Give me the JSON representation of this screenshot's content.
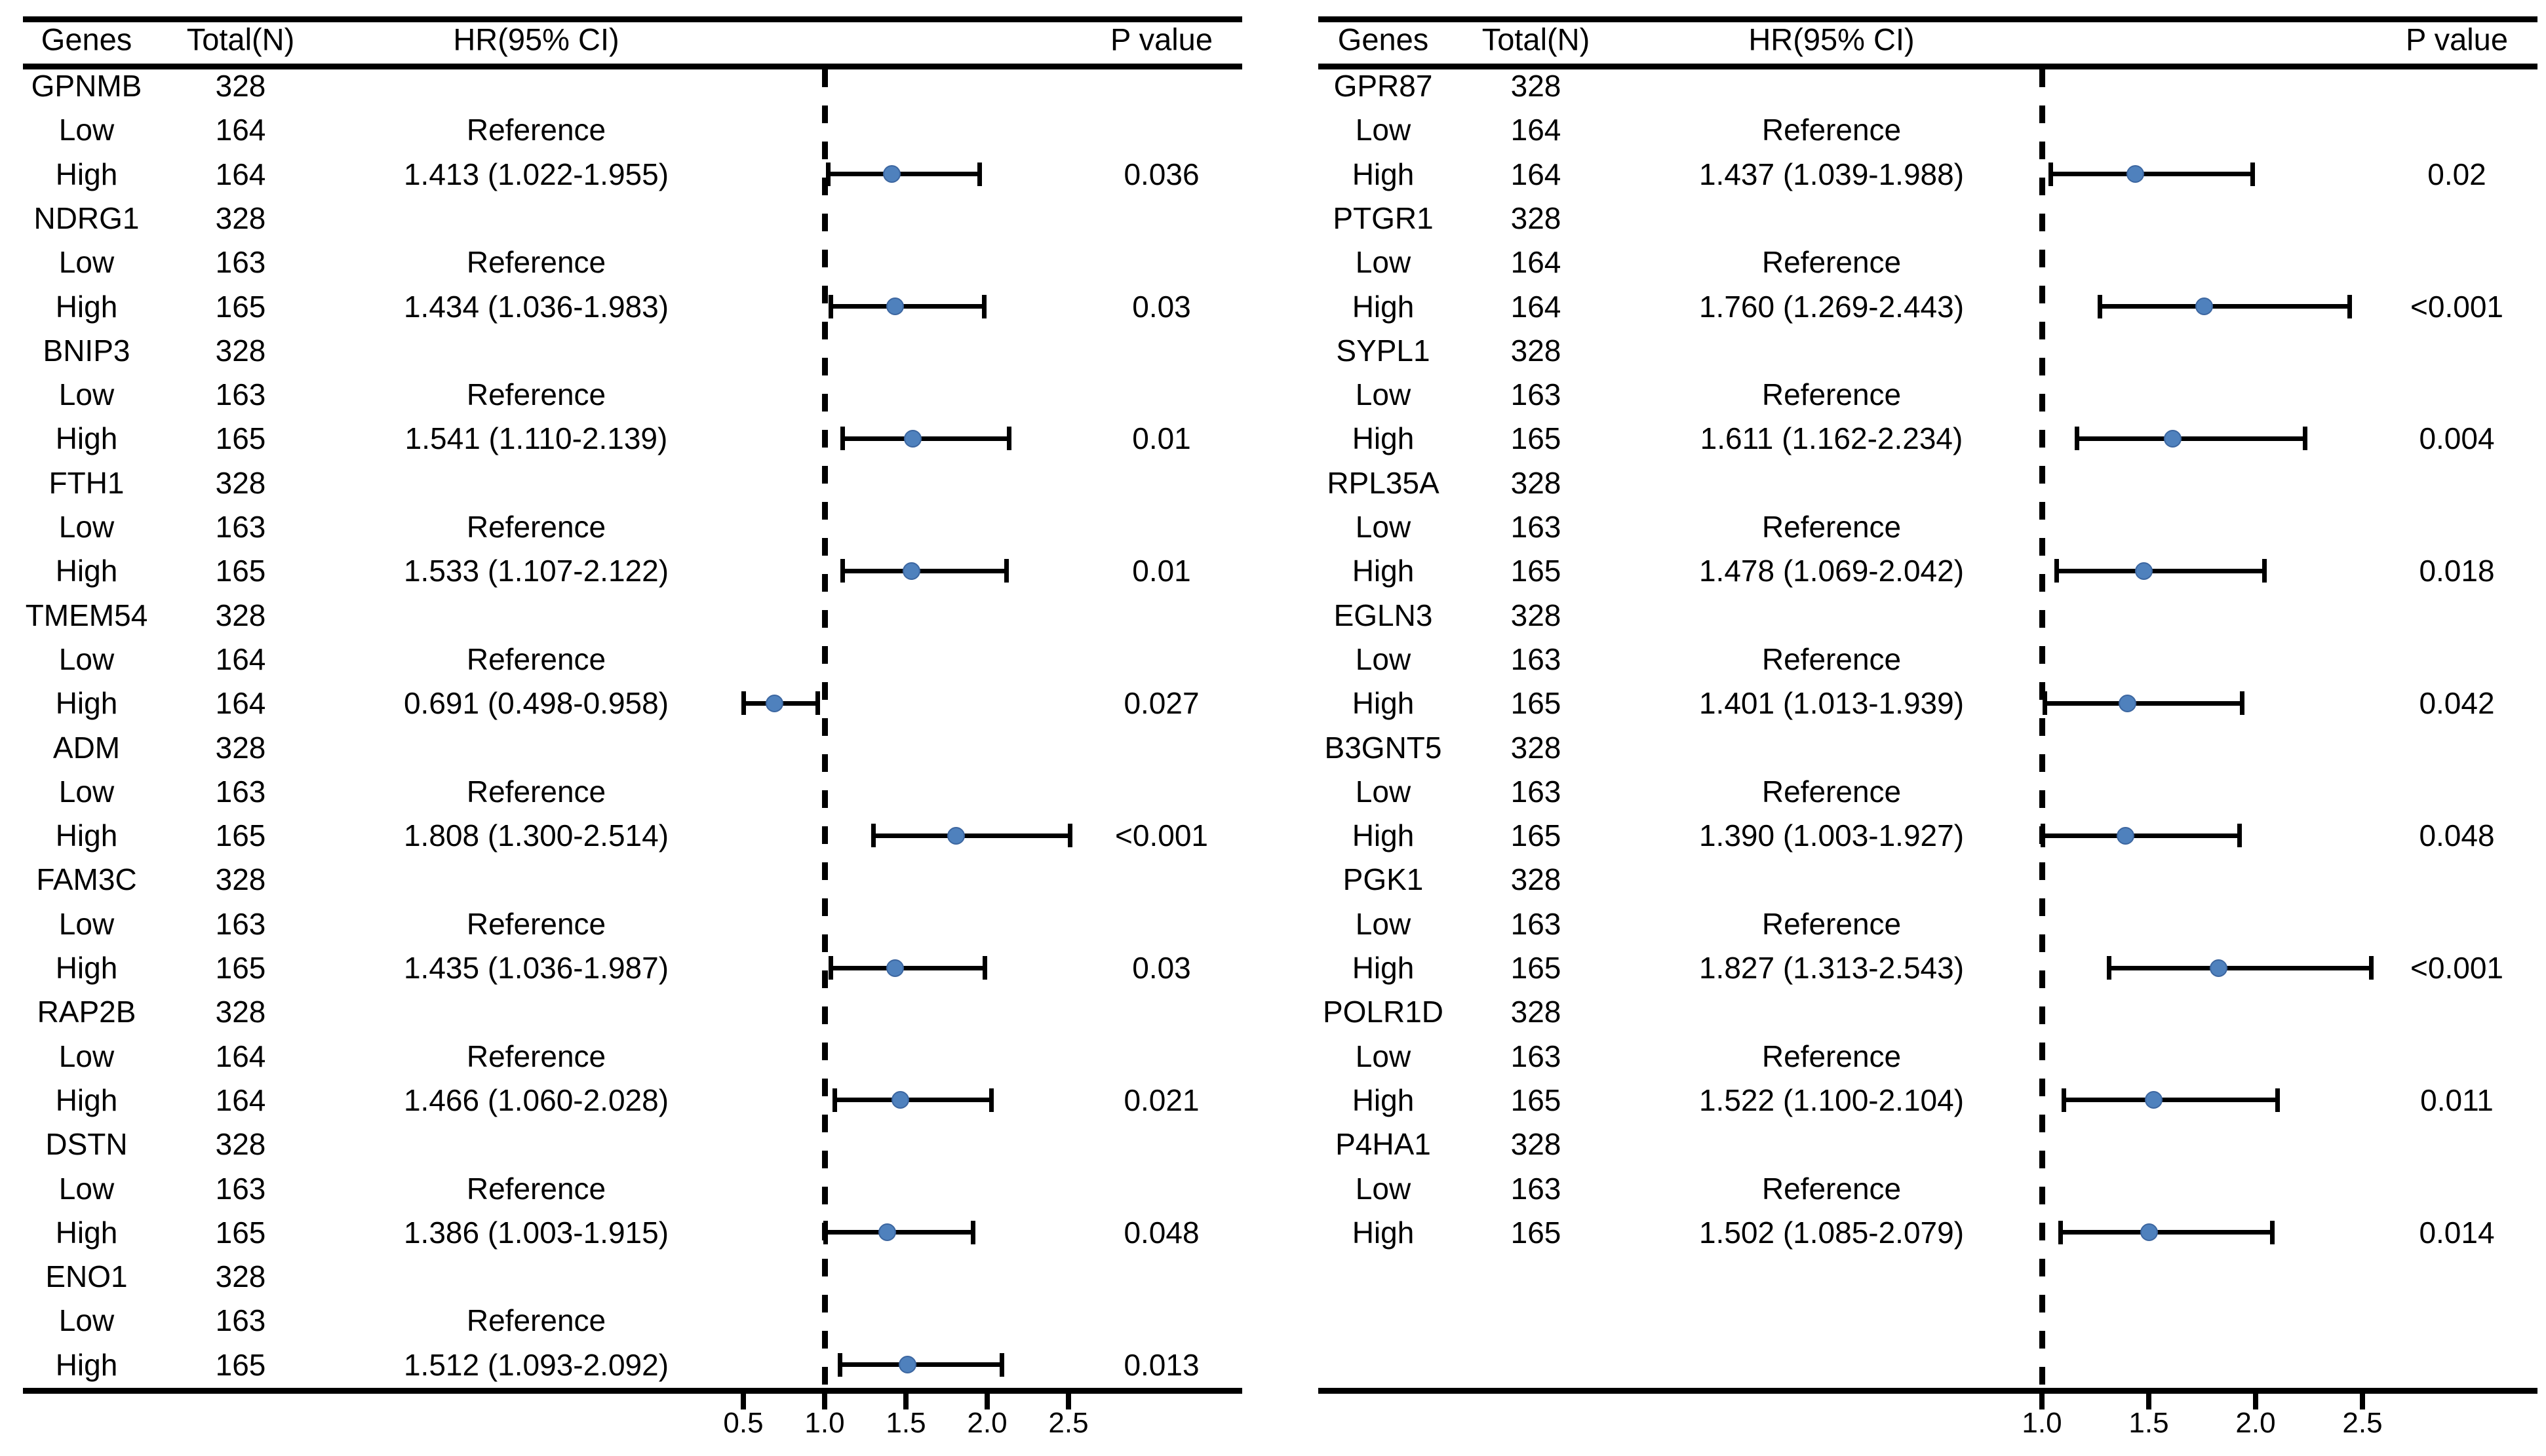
{
  "style": {
    "dot_fill": "#4f81bd",
    "dot_border": "#3c66a0",
    "line_color": "#000000",
    "background": "#ffffff"
  },
  "chart_data": [
    {
      "type": "forest",
      "panel": "left",
      "columns": {
        "genes": "Genes",
        "total": "Total(N)",
        "hr": "HR(95% CI)",
        "p": "P value"
      },
      "axis": {
        "ref_line": 1.0,
        "xmin": 0.3,
        "xmax": 2.9,
        "ticks": [
          "0.5",
          "1.0",
          "1.5",
          "2.0",
          "2.5"
        ],
        "tick_values": [
          0.5,
          1.0,
          1.5,
          2.0,
          2.5
        ]
      },
      "rows": [
        {
          "gene": "GPNMB",
          "total": "328"
        },
        {
          "gene": "Low",
          "total": "164",
          "hr_text": "Reference"
        },
        {
          "gene": "High",
          "total": "164",
          "hr_text": "1.413 (1.022-1.955)",
          "hr": 1.413,
          "lo": 1.022,
          "hi": 1.955,
          "p": "0.036"
        },
        {
          "gene": "NDRG1",
          "total": "328"
        },
        {
          "gene": "Low",
          "total": "163",
          "hr_text": "Reference"
        },
        {
          "gene": "High",
          "total": "165",
          "hr_text": "1.434 (1.036-1.983)",
          "hr": 1.434,
          "lo": 1.036,
          "hi": 1.983,
          "p": "0.03"
        },
        {
          "gene": "BNIP3",
          "total": "328"
        },
        {
          "gene": "Low",
          "total": "163",
          "hr_text": "Reference"
        },
        {
          "gene": "High",
          "total": "165",
          "hr_text": "1.541 (1.110-2.139)",
          "hr": 1.541,
          "lo": 1.11,
          "hi": 2.139,
          "p": "0.01"
        },
        {
          "gene": "FTH1",
          "total": "328"
        },
        {
          "gene": "Low",
          "total": "163",
          "hr_text": "Reference"
        },
        {
          "gene": "High",
          "total": "165",
          "hr_text": "1.533 (1.107-2.122)",
          "hr": 1.533,
          "lo": 1.107,
          "hi": 2.122,
          "p": "0.01"
        },
        {
          "gene": "TMEM54",
          "total": "328"
        },
        {
          "gene": "Low",
          "total": "164",
          "hr_text": "Reference"
        },
        {
          "gene": "High",
          "total": "164",
          "hr_text": "0.691 (0.498-0.958)",
          "hr": 0.691,
          "lo": 0.498,
          "hi": 0.958,
          "p": "0.027"
        },
        {
          "gene": "ADM",
          "total": "328"
        },
        {
          "gene": "Low",
          "total": "163",
          "hr_text": "Reference"
        },
        {
          "gene": "High",
          "total": "165",
          "hr_text": "1.808 (1.300-2.514)",
          "hr": 1.808,
          "lo": 1.3,
          "hi": 2.514,
          "p": "<0.001"
        },
        {
          "gene": "FAM3C",
          "total": "328"
        },
        {
          "gene": "Low",
          "total": "163",
          "hr_text": "Reference"
        },
        {
          "gene": "High",
          "total": "165",
          "hr_text": "1.435 (1.036-1.987)",
          "hr": 1.435,
          "lo": 1.036,
          "hi": 1.987,
          "p": "0.03"
        },
        {
          "gene": "RAP2B",
          "total": "328"
        },
        {
          "gene": "Low",
          "total": "164",
          "hr_text": "Reference"
        },
        {
          "gene": "High",
          "total": "164",
          "hr_text": "1.466 (1.060-2.028)",
          "hr": 1.466,
          "lo": 1.06,
          "hi": 2.028,
          "p": "0.021"
        },
        {
          "gene": "DSTN",
          "total": "328"
        },
        {
          "gene": "Low",
          "total": "163",
          "hr_text": "Reference"
        },
        {
          "gene": "High",
          "total": "165",
          "hr_text": "1.386 (1.003-1.915)",
          "hr": 1.386,
          "lo": 1.003,
          "hi": 1.915,
          "p": "0.048"
        },
        {
          "gene": "ENO1",
          "total": "328"
        },
        {
          "gene": "Low",
          "total": "163",
          "hr_text": "Reference"
        },
        {
          "gene": "High",
          "total": "165",
          "hr_text": "1.512 (1.093-2.092)",
          "hr": 1.512,
          "lo": 1.093,
          "hi": 2.092,
          "p": "0.013"
        }
      ]
    },
    {
      "type": "forest",
      "panel": "right",
      "columns": {
        "genes": "Genes",
        "total": "Total(N)",
        "hr": "HR(95% CI)",
        "p": "P value"
      },
      "axis": {
        "ref_line": 1.0,
        "xmin": 0.7,
        "xmax": 2.9,
        "ticks": [
          "1.0",
          "1.5",
          "2.0",
          "2.5"
        ],
        "tick_values": [
          1.0,
          1.5,
          2.0,
          2.5
        ]
      },
      "rows": [
        {
          "gene": "GPR87",
          "total": "328"
        },
        {
          "gene": "Low",
          "total": "164",
          "hr_text": "Reference"
        },
        {
          "gene": "High",
          "total": "164",
          "hr_text": "1.437 (1.039-1.988)",
          "hr": 1.437,
          "lo": 1.039,
          "hi": 1.988,
          "p": "0.02"
        },
        {
          "gene": "PTGR1",
          "total": "328"
        },
        {
          "gene": "Low",
          "total": "164",
          "hr_text": "Reference"
        },
        {
          "gene": "High",
          "total": "164",
          "hr_text": "1.760 (1.269-2.443)",
          "hr": 1.76,
          "lo": 1.269,
          "hi": 2.443,
          "p": "<0.001"
        },
        {
          "gene": "SYPL1",
          "total": "328"
        },
        {
          "gene": "Low",
          "total": "163",
          "hr_text": "Reference"
        },
        {
          "gene": "High",
          "total": "165",
          "hr_text": "1.611 (1.162-2.234)",
          "hr": 1.611,
          "lo": 1.162,
          "hi": 2.234,
          "p": "0.004"
        },
        {
          "gene": "RPL35A",
          "total": "328"
        },
        {
          "gene": "Low",
          "total": "163",
          "hr_text": "Reference"
        },
        {
          "gene": "High",
          "total": "165",
          "hr_text": "1.478 (1.069-2.042)",
          "hr": 1.478,
          "lo": 1.069,
          "hi": 2.042,
          "p": "0.018"
        },
        {
          "gene": "EGLN3",
          "total": "328"
        },
        {
          "gene": "Low",
          "total": "163",
          "hr_text": "Reference"
        },
        {
          "gene": "High",
          "total": "165",
          "hr_text": "1.401 (1.013-1.939)",
          "hr": 1.401,
          "lo": 1.013,
          "hi": 1.939,
          "p": "0.042"
        },
        {
          "gene": "B3GNT5",
          "total": "328"
        },
        {
          "gene": "Low",
          "total": "163",
          "hr_text": "Reference"
        },
        {
          "gene": "High",
          "total": "165",
          "hr_text": "1.390 (1.003-1.927)",
          "hr": 1.39,
          "lo": 1.003,
          "hi": 1.927,
          "p": "0.048"
        },
        {
          "gene": "PGK1",
          "total": "328"
        },
        {
          "gene": "Low",
          "total": "163",
          "hr_text": "Reference"
        },
        {
          "gene": "High",
          "total": "165",
          "hr_text": "1.827 (1.313-2.543)",
          "hr": 1.827,
          "lo": 1.313,
          "hi": 2.543,
          "p": "<0.001"
        },
        {
          "gene": "POLR1D",
          "total": "328"
        },
        {
          "gene": "Low",
          "total": "163",
          "hr_text": "Reference"
        },
        {
          "gene": "High",
          "total": "165",
          "hr_text": "1.522 (1.100-2.104)",
          "hr": 1.522,
          "lo": 1.1,
          "hi": 2.104,
          "p": "0.011"
        },
        {
          "gene": "P4HA1",
          "total": "328"
        },
        {
          "gene": "Low",
          "total": "163",
          "hr_text": "Reference"
        },
        {
          "gene": "High",
          "total": "165",
          "hr_text": "1.502 (1.085-2.079)",
          "hr": 1.502,
          "lo": 1.085,
          "hi": 2.079,
          "p": "0.014"
        }
      ]
    }
  ]
}
